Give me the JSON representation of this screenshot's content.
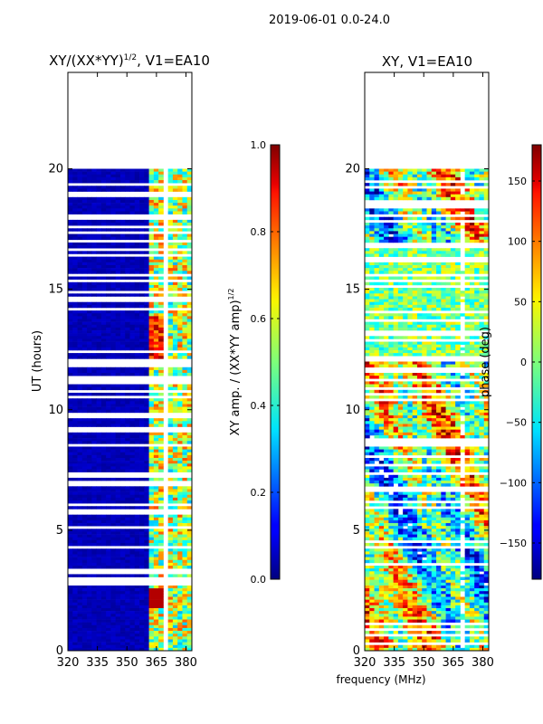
{
  "suptitle": "2019-06-01 0.0-24.0",
  "chart_data": [
    {
      "type": "heatmap",
      "title_main": "XY/(XX*YY)",
      "title_exp": "1/2",
      "title_rest": ", V1=EA10",
      "xlabel": "",
      "ylabel": "UT (hours)",
      "xlim": [
        320,
        383
      ],
      "ylim": [
        0,
        24
      ],
      "xticks": [
        "320",
        "335",
        "350",
        "365",
        "380"
      ],
      "xtick_values": [
        320,
        335,
        350,
        365,
        380
      ],
      "yticks": [
        "0",
        "5",
        "10",
        "15",
        "20"
      ],
      "ytick_values": [
        0,
        5,
        10,
        15,
        20
      ],
      "data_extent_hours": [
        0,
        20
      ],
      "colormap": "jet",
      "colorbar": {
        "label_main": "XY amp. / (XX*YY amp)",
        "label_exp": "1/2",
        "range": [
          0.0,
          1.0
        ],
        "ticks": [
          "0.0",
          "0.2",
          "0.4",
          "0.6",
          "0.8",
          "1.0"
        ],
        "tick_values": [
          0.0,
          0.2,
          0.4,
          0.6,
          0.8,
          1.0
        ]
      }
    },
    {
      "type": "heatmap",
      "title": "XY, V1=EA10",
      "xlabel": "frequency (MHz)",
      "ylabel": "",
      "xlim": [
        320,
        383
      ],
      "ylim": [
        0,
        24
      ],
      "xticks": [
        "320",
        "335",
        "350",
        "365",
        "380"
      ],
      "xtick_values": [
        320,
        335,
        350,
        365,
        380
      ],
      "yticks": [
        "0",
        "5",
        "10",
        "15",
        "20"
      ],
      "ytick_values": [
        0,
        5,
        10,
        15,
        20
      ],
      "data_extent_hours": [
        0,
        20
      ],
      "colormap": "jet",
      "colorbar": {
        "label": "phase (deg)",
        "range": [
          -180,
          180
        ],
        "ticks": [
          "−150",
          "−100",
          "−50",
          "0",
          "50",
          "100",
          "150"
        ],
        "tick_values": [
          -150,
          -100,
          -50,
          0,
          50,
          100,
          150
        ]
      }
    }
  ]
}
